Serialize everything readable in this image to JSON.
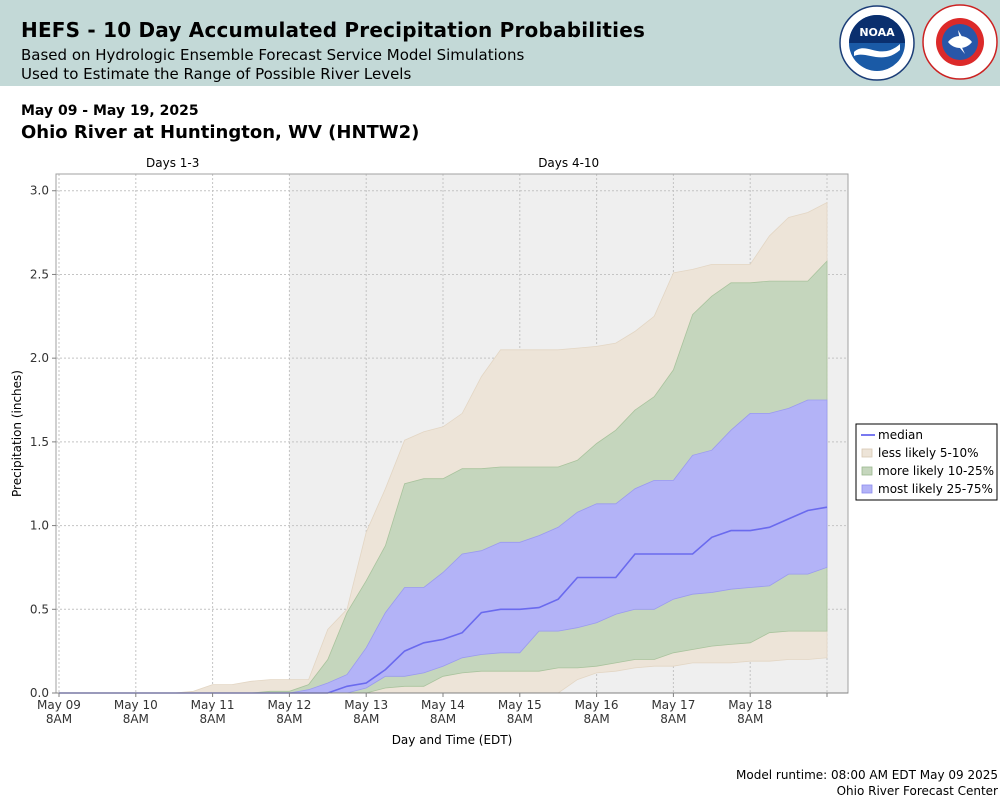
{
  "header": {
    "title": "HEFS - 10 Day Accumulated Precipitation Probabilities",
    "subtitle1": "Based on Hydrologic Ensemble Forecast Service Model Simulations",
    "subtitle2": "Used to Estimate the Range of Possible River Levels",
    "date_range": "May 09 - May 19, 2025",
    "station": "Ohio River at Huntington, WV (HNTW2)"
  },
  "logos": {
    "noaa_text": "NOAA",
    "nws_text": "NATIONAL WEATHER SERVICE"
  },
  "footer": {
    "runtime": "Model runtime: 08:00 AM EDT May 09 2025",
    "center": "Ohio River Forecast Center"
  },
  "colors": {
    "median": "#6a6aee",
    "less_likely": "#ede4d8",
    "more_likely": "#c5d6bd",
    "most_likely": "#b3b3f7",
    "shade": "#efefef"
  },
  "chart_data": {
    "type": "area",
    "xlabel": "Day and Time (EDT)",
    "ylabel": "Precipitation (inches)",
    "ylim": [
      0,
      3.1
    ],
    "yticks": [
      "0.0",
      "0.5",
      "1.0",
      "1.5",
      "2.0",
      "2.5",
      "3.0"
    ],
    "xticks": [
      {
        "day": "May 09",
        "time": "8AM"
      },
      {
        "day": "May 10",
        "time": "8AM"
      },
      {
        "day": "May 11",
        "time": "8AM"
      },
      {
        "day": "May 12",
        "time": "8AM"
      },
      {
        "day": "May 13",
        "time": "8AM"
      },
      {
        "day": "May 14",
        "time": "8AM"
      },
      {
        "day": "May 15",
        "time": "8AM"
      },
      {
        "day": "May 16",
        "time": "8AM"
      },
      {
        "day": "May 17",
        "time": "8AM"
      },
      {
        "day": "May 18",
        "time": "8AM"
      }
    ],
    "periods": [
      {
        "label": "Days 1-3",
        "from": 0,
        "to": 3
      },
      {
        "label": "Days 4-10",
        "from": 3,
        "to": 10
      }
    ],
    "grid": true,
    "legend_position": "right",
    "legend": [
      "median",
      "less likely 5-10%",
      "more likely 10-25%",
      "most likely 25-75%"
    ],
    "x_days": [
      0,
      0.25,
      0.5,
      0.75,
      1,
      1.25,
      1.5,
      1.75,
      2,
      2.25,
      2.5,
      2.75,
      3,
      3.25,
      3.5,
      3.75,
      4,
      4.25,
      4.5,
      4.75,
      5,
      5.25,
      5.5,
      5.75,
      6,
      6.25,
      6.5,
      6.75,
      7,
      7.25,
      7.5,
      7.75,
      8,
      8.25,
      8.5,
      8.75,
      9,
      9.25,
      9.5,
      9.75,
      10
    ],
    "series": [
      {
        "name": "less likely 5-10%",
        "lower": [
          0,
          0,
          0,
          0,
          0,
          0,
          0,
          0,
          0,
          0,
          0,
          0,
          0,
          0,
          0,
          0,
          0,
          0,
          0,
          0,
          0,
          0,
          0,
          0,
          0,
          0,
          0,
          0.08,
          0.12,
          0.13,
          0.15,
          0.16,
          0.16,
          0.18,
          0.18,
          0.18,
          0.19,
          0.19,
          0.2,
          0.2,
          0.21
        ],
        "upper": [
          0,
          0,
          0,
          0,
          0,
          0,
          0,
          0.01,
          0.05,
          0.05,
          0.07,
          0.08,
          0.08,
          0.08,
          0.38,
          0.5,
          0.96,
          1.22,
          1.51,
          1.56,
          1.59,
          1.67,
          1.89,
          2.05,
          2.05,
          2.05,
          2.05,
          2.06,
          2.07,
          2.09,
          2.16,
          2.25,
          2.51,
          2.53,
          2.56,
          2.56,
          2.56,
          2.73,
          2.84,
          2.87,
          2.93
        ]
      },
      {
        "name": "more likely 10-25%",
        "lower": [
          0,
          0,
          0,
          0,
          0,
          0,
          0,
          0,
          0,
          0,
          0,
          0,
          0,
          0,
          0,
          0,
          0,
          0.03,
          0.04,
          0.04,
          0.1,
          0.12,
          0.13,
          0.13,
          0.13,
          0.13,
          0.15,
          0.15,
          0.16,
          0.18,
          0.2,
          0.2,
          0.24,
          0.26,
          0.28,
          0.29,
          0.3,
          0.36,
          0.37,
          0.37,
          0.37
        ],
        "upper": [
          0,
          0,
          0,
          0,
          0,
          0,
          0,
          0,
          0,
          0,
          0,
          0.01,
          0.01,
          0.05,
          0.2,
          0.48,
          0.67,
          0.88,
          1.25,
          1.28,
          1.28,
          1.34,
          1.34,
          1.35,
          1.35,
          1.35,
          1.35,
          1.39,
          1.49,
          1.57,
          1.69,
          1.77,
          1.93,
          2.26,
          2.37,
          2.45,
          2.45,
          2.46,
          2.46,
          2.46,
          2.58
        ]
      },
      {
        "name": "most likely 25-75%",
        "lower": [
          0,
          0,
          0,
          0,
          0,
          0,
          0,
          0,
          0,
          0,
          0,
          0,
          0,
          0,
          0,
          0,
          0.03,
          0.1,
          0.1,
          0.12,
          0.16,
          0.21,
          0.23,
          0.24,
          0.24,
          0.37,
          0.37,
          0.39,
          0.42,
          0.47,
          0.5,
          0.5,
          0.56,
          0.59,
          0.6,
          0.62,
          0.63,
          0.64,
          0.71,
          0.71,
          0.75
        ],
        "upper": [
          0,
          0,
          0,
          0,
          0,
          0,
          0,
          0,
          0,
          0,
          0,
          0,
          0,
          0.02,
          0.06,
          0.11,
          0.27,
          0.48,
          0.63,
          0.63,
          0.72,
          0.83,
          0.85,
          0.9,
          0.9,
          0.94,
          0.99,
          1.08,
          1.13,
          1.13,
          1.22,
          1.27,
          1.27,
          1.42,
          1.45,
          1.57,
          1.67,
          1.67,
          1.7,
          1.75,
          1.75
        ]
      },
      {
        "name": "median",
        "values": [
          0,
          0,
          0,
          0,
          0,
          0,
          0,
          0,
          0,
          0,
          0,
          0,
          0,
          0,
          0,
          0.04,
          0.06,
          0.14,
          0.25,
          0.3,
          0.32,
          0.36,
          0.48,
          0.5,
          0.5,
          0.51,
          0.56,
          0.69,
          0.69,
          0.69,
          0.83,
          0.83,
          0.83,
          0.83,
          0.93,
          0.97,
          0.97,
          0.99,
          1.04,
          1.09,
          1.11
        ]
      }
    ]
  }
}
